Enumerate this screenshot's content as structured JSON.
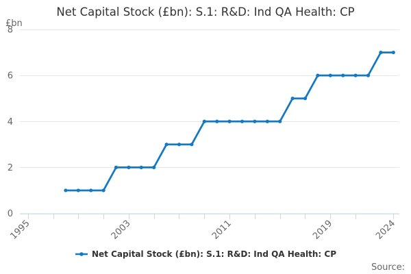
{
  "chart": {
    "title": "Net Capital Stock (£bn): S.1: R&D: Ind QA Health: CP",
    "unit_label": "£bn",
    "source_label": "Source:"
  },
  "legend": {
    "items": [
      {
        "label": "Net Capital Stock (£bn): S.1: R&D: Ind QA Health: CP"
      }
    ]
  },
  "chart_data": {
    "type": "line",
    "title": "Net Capital Stock (£bn): S.1: R&D: Ind QA Health: CP",
    "series_name": "Net Capital Stock (£bn): S.1: R&D: Ind QA Health: CP",
    "xlabel": "",
    "ylabel": "£bn",
    "x": [
      1998,
      1999,
      2000,
      2001,
      2002,
      2003,
      2004,
      2005,
      2006,
      2007,
      2008,
      2009,
      2010,
      2011,
      2012,
      2013,
      2014,
      2015,
      2016,
      2017,
      2018,
      2019,
      2020,
      2021,
      2022,
      2023,
      2024
    ],
    "values": [
      1,
      1,
      1,
      1,
      2,
      2,
      2,
      2,
      3,
      3,
      3,
      4,
      4,
      4,
      4,
      4,
      4,
      4,
      5,
      5,
      6,
      6,
      6,
      6,
      6,
      7,
      7
    ],
    "xlim": [
      1995,
      2024
    ],
    "ylim": [
      0,
      8
    ],
    "y_ticks": [
      0,
      2,
      4,
      6,
      8
    ],
    "x_ticks": [
      1995,
      1997,
      1999,
      2001,
      2003,
      2005,
      2007,
      2009,
      2011,
      2013,
      2015,
      2017,
      2019,
      2021,
      2024
    ],
    "x_tick_labels": [
      "1995",
      "2003",
      "2011",
      "2019",
      "2024"
    ],
    "grid": "horizontal",
    "legend_position": "bottom",
    "marker": "circle",
    "colors": {
      "line": "#137ac2",
      "grid": "#e6e6e6",
      "axis": "#ccd6eb",
      "axis_label": "#666666",
      "title": "#333333",
      "legend_text": "#333333"
    }
  }
}
